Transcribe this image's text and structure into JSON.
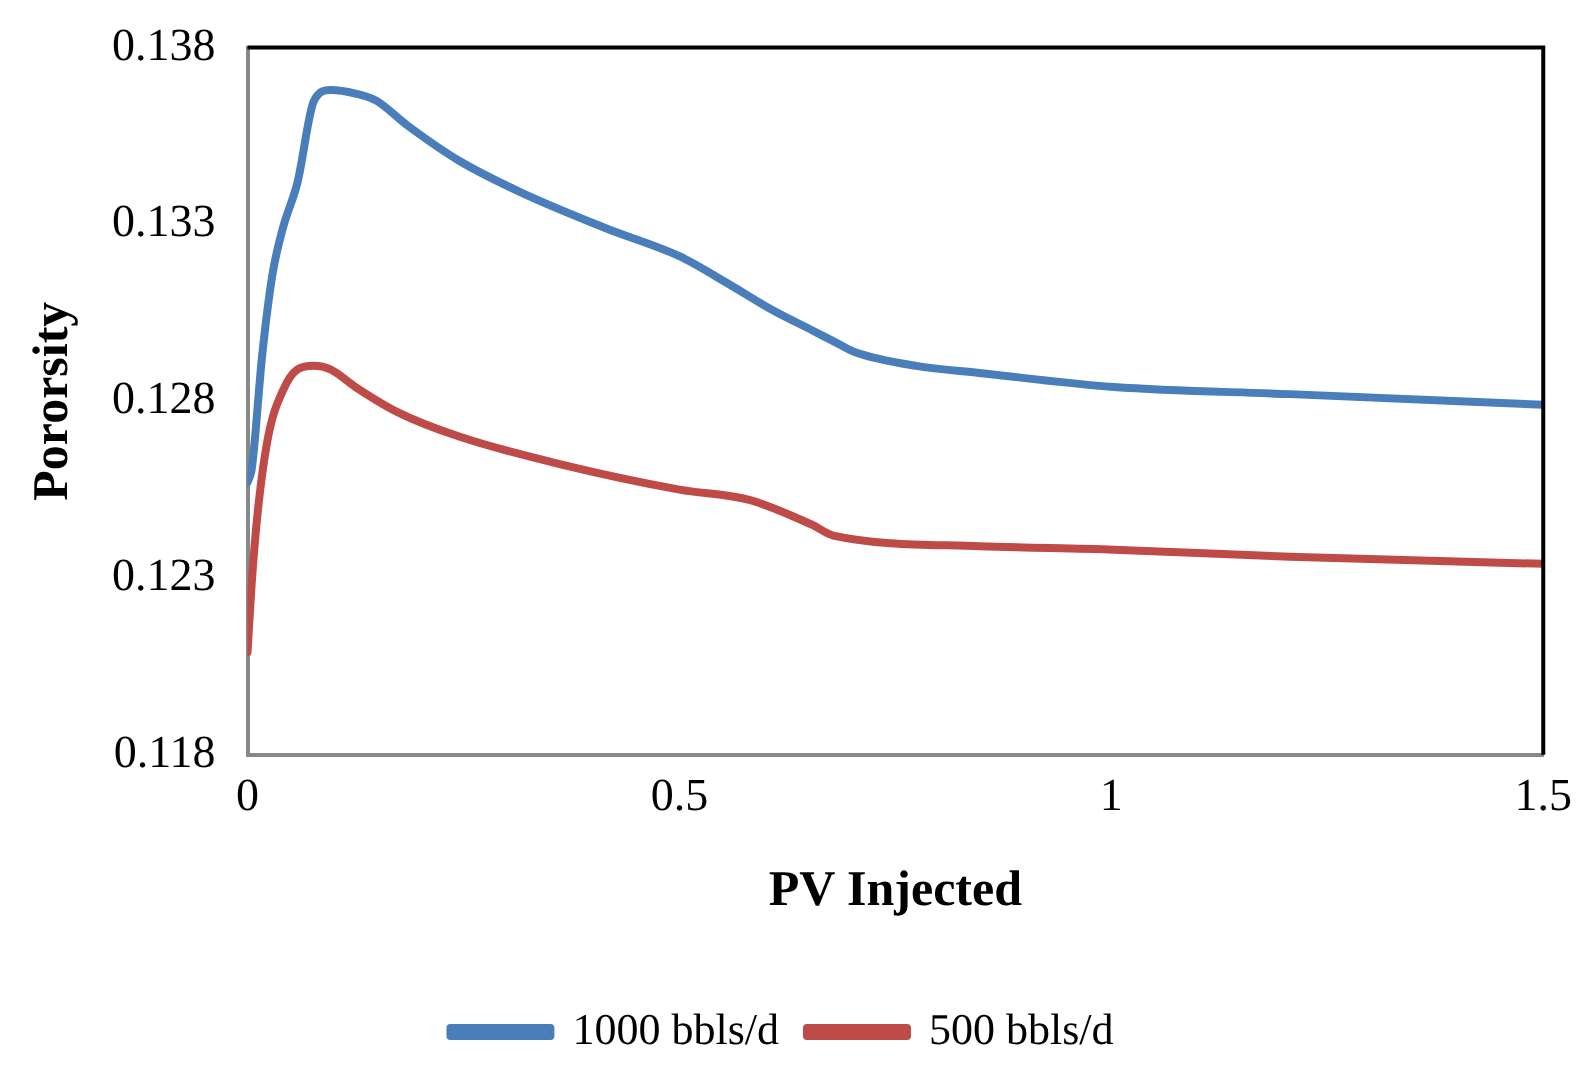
{
  "chart_data": {
    "type": "line",
    "xlabel": "PV Injected",
    "ylabel": "Pororsity",
    "xlim": [
      0,
      1.5
    ],
    "xticks": [
      0,
      0.5,
      1,
      1.5
    ],
    "ylim": [
      0.118,
      0.138
    ],
    "yticks": [
      0.118,
      0.123,
      0.128,
      0.133,
      0.138
    ],
    "grid": false,
    "legend": "bottom",
    "marker": "none",
    "line_style": "solid",
    "series": [
      {
        "name": "1000 bbls/d",
        "color": "#4a7ebb",
        "x": [
          0,
          0.005,
          0.017,
          0.029,
          0.041,
          0.058,
          0.077,
          0.096,
          0.125,
          0.149,
          0.185,
          0.245,
          0.317,
          0.414,
          0.5,
          0.558,
          0.606,
          0.654,
          0.678,
          0.702,
          0.774,
          0.847,
          1.003,
          1.207,
          1.5
        ],
        "values": [
          0.1257,
          0.1261,
          0.1293,
          0.1316,
          0.1329,
          0.1342,
          0.1365,
          0.1368,
          0.1367,
          0.1365,
          0.1358,
          0.1348,
          0.1339,
          0.1329,
          0.1321,
          0.1313,
          0.1306,
          0.13,
          0.1297,
          0.1294,
          0.129,
          0.1288,
          0.1284,
          0.1282,
          0.1279
        ]
      },
      {
        "name": "500 bbls/d",
        "color": "#be4b48",
        "x": [
          0,
          0.005,
          0.012,
          0.024,
          0.041,
          0.058,
          0.077,
          0.096,
          0.125,
          0.173,
          0.245,
          0.365,
          0.5,
          0.582,
          0.654,
          0.678,
          0.847,
          1.003,
          1.207,
          1.5
        ],
        "values": [
          0.1209,
          0.1229,
          0.1249,
          0.127,
          0.1283,
          0.1289,
          0.129,
          0.1289,
          0.1284,
          0.1277,
          0.127,
          0.1262,
          0.1255,
          0.1252,
          0.1245,
          0.1242,
          0.1239,
          0.1238,
          0.1236,
          0.1234
        ]
      }
    ]
  }
}
